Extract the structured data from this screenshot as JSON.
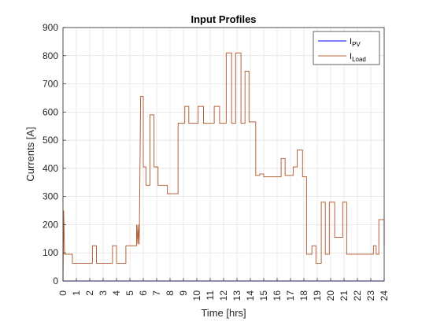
{
  "chart_data": {
    "type": "line",
    "title": "Input Profiles",
    "xlabel": "Time [hrs]",
    "ylabel": "Currents [A]",
    "xlim": [
      0,
      24
    ],
    "ylim": [
      0,
      900
    ],
    "x_ticks": [
      0,
      1,
      2,
      3,
      4,
      5,
      6,
      7,
      8,
      9,
      10,
      11,
      12,
      13,
      14,
      15,
      16,
      17,
      18,
      19,
      20,
      21,
      22,
      23,
      24
    ],
    "y_ticks": [
      0,
      100,
      200,
      300,
      400,
      500,
      600,
      700,
      800,
      900
    ],
    "grid": true,
    "legend_position": "top-right",
    "series": [
      {
        "name": "I_PV",
        "label_main": "I",
        "label_sub": "PV",
        "color": "#0000ff",
        "points": [
          [
            0,
            0
          ],
          [
            24,
            0
          ]
        ]
      },
      {
        "name": "I_Load",
        "label_main": "I",
        "label_sub": "Load",
        "color": "#b5643c",
        "points": [
          [
            0,
            0
          ],
          [
            0.05,
            250
          ],
          [
            0.12,
            95
          ],
          [
            0.7,
            95
          ],
          [
            0.7,
            63
          ],
          [
            2.2,
            63
          ],
          [
            2.2,
            125
          ],
          [
            2.5,
            125
          ],
          [
            2.5,
            63
          ],
          [
            3.7,
            63
          ],
          [
            3.7,
            125
          ],
          [
            4.0,
            125
          ],
          [
            4.0,
            63
          ],
          [
            4.7,
            63
          ],
          [
            4.7,
            125
          ],
          [
            5.5,
            125
          ],
          [
            5.5,
            200
          ],
          [
            5.5,
            130
          ],
          [
            5.6,
            200
          ],
          [
            5.6,
            130
          ],
          [
            5.7,
            200
          ],
          [
            5.7,
            130
          ],
          [
            5.8,
            655
          ],
          [
            6.0,
            655
          ],
          [
            6.0,
            405
          ],
          [
            6.2,
            405
          ],
          [
            6.2,
            340
          ],
          [
            6.5,
            340
          ],
          [
            6.5,
            590
          ],
          [
            6.8,
            590
          ],
          [
            6.8,
            405
          ],
          [
            7.1,
            405
          ],
          [
            7.1,
            340
          ],
          [
            7.8,
            340
          ],
          [
            7.8,
            310
          ],
          [
            8.6,
            310
          ],
          [
            8.6,
            560
          ],
          [
            9.1,
            560
          ],
          [
            9.1,
            620
          ],
          [
            9.4,
            620
          ],
          [
            9.4,
            560
          ],
          [
            10.1,
            560
          ],
          [
            10.1,
            620
          ],
          [
            10.5,
            620
          ],
          [
            10.5,
            560
          ],
          [
            11.3,
            560
          ],
          [
            11.3,
            620
          ],
          [
            11.7,
            620
          ],
          [
            11.7,
            560
          ],
          [
            12.2,
            560
          ],
          [
            12.2,
            810
          ],
          [
            12.6,
            810
          ],
          [
            12.6,
            560
          ],
          [
            12.9,
            560
          ],
          [
            12.9,
            810
          ],
          [
            13.3,
            810
          ],
          [
            13.3,
            560
          ],
          [
            13.6,
            560
          ],
          [
            13.6,
            745
          ],
          [
            13.9,
            745
          ],
          [
            13.9,
            565
          ],
          [
            14.4,
            565
          ],
          [
            14.4,
            375
          ],
          [
            14.7,
            375
          ],
          [
            14.7,
            380
          ],
          [
            15.0,
            380
          ],
          [
            15.0,
            370
          ],
          [
            16.3,
            370
          ],
          [
            16.3,
            435
          ],
          [
            16.6,
            435
          ],
          [
            16.6,
            375
          ],
          [
            17.2,
            375
          ],
          [
            17.2,
            405
          ],
          [
            17.5,
            405
          ],
          [
            17.5,
            465
          ],
          [
            17.9,
            465
          ],
          [
            17.9,
            370
          ],
          [
            18.2,
            370
          ],
          [
            18.2,
            95
          ],
          [
            18.6,
            95
          ],
          [
            18.6,
            125
          ],
          [
            18.9,
            125
          ],
          [
            18.9,
            63
          ],
          [
            19.3,
            63
          ],
          [
            19.3,
            280
          ],
          [
            19.6,
            280
          ],
          [
            19.6,
            95
          ],
          [
            19.9,
            95
          ],
          [
            19.9,
            280
          ],
          [
            20.3,
            280
          ],
          [
            20.3,
            155
          ],
          [
            20.9,
            155
          ],
          [
            20.9,
            280
          ],
          [
            21.2,
            280
          ],
          [
            21.2,
            95
          ],
          [
            23.2,
            95
          ],
          [
            23.2,
            125
          ],
          [
            23.4,
            125
          ],
          [
            23.4,
            95
          ],
          [
            23.6,
            95
          ],
          [
            23.6,
            218
          ],
          [
            24.0,
            218
          ],
          [
            24.0,
            125
          ]
        ]
      }
    ]
  }
}
